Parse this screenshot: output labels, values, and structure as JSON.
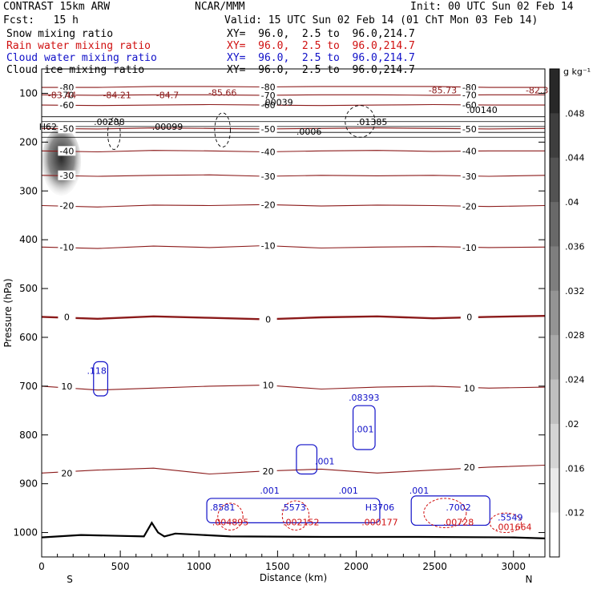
{
  "header": {
    "model": "CONTRAST 15km ARW",
    "org": "NCAR/MMM",
    "init": "Init: 00 UTC Sun 02 Feb 14",
    "fcst": "Fcst:   15 h",
    "valid": "Valid: 15 UTC Sun 02 Feb 14 (01 ChT Mon 03 Feb 14)"
  },
  "legend_rows": [
    {
      "name": "Snow mixing ratio",
      "xy": "XY=  96.0,  2.5 to  96.0,214.7",
      "color": "#000000"
    },
    {
      "name": "Rain water mixing ratio",
      "xy": "XY=  96.0,  2.5 to  96.0,214.7",
      "color": "#d01010"
    },
    {
      "name": "Cloud water mixing ratio",
      "xy": "XY=  96.0,  2.5 to  96.0,214.7",
      "color": "#1010c8"
    },
    {
      "name": "Cloud ice mixing ratio",
      "xy": "XY=  96.0,  2.5 to  96.0,214.7",
      "color": "#000000"
    }
  ],
  "colorbar": {
    "unit": "g kg⁻¹",
    "ticks": [
      ".048",
      ".044",
      ".04",
      ".036",
      ".032",
      ".028",
      ".024",
      ".02",
      ".016",
      ".012"
    ],
    "tick_values": [
      0.048,
      0.044,
      0.04,
      0.036,
      0.032,
      0.028,
      0.024,
      0.02,
      0.016,
      0.012
    ],
    "range": [
      0.008,
      0.052
    ]
  },
  "chart_data": {
    "type": "contour",
    "xlabel": "Distance (km)",
    "ylabel": "Pressure (hPa)",
    "xlim": [
      0,
      3200
    ],
    "ylim": [
      1050,
      50
    ],
    "x_ticks": [
      "0",
      "500",
      "1000",
      "1500",
      "2000",
      "2500",
      "3000"
    ],
    "x_tick_values": [
      0,
      500,
      1000,
      1500,
      2000,
      2500,
      3000
    ],
    "y_ticks": [
      "100",
      "200",
      "300",
      "400",
      "500",
      "600",
      "700",
      "800",
      "900",
      "1000"
    ],
    "y_tick_values": [
      100,
      200,
      300,
      400,
      500,
      600,
      700,
      800,
      900,
      1000
    ],
    "endpoints": {
      "left": "S",
      "right": "N"
    },
    "temperature_color": "#8b1a1a",
    "isotherms": [
      {
        "label": "-80",
        "p": [
          88,
          88,
          86,
          86,
          87,
          86,
          86,
          86,
          88,
          88
        ]
      },
      {
        "label": "-70",
        "p": [
          103,
          104,
          103,
          103,
          104,
          103,
          103,
          104,
          103,
          103
        ]
      },
      {
        "label": "-60",
        "p": [
          124,
          125,
          124,
          123,
          124,
          125,
          124,
          123,
          124,
          124
        ]
      },
      {
        "label": "-50",
        "p": [
          172,
          173,
          171,
          172,
          173,
          172,
          171,
          172,
          173,
          172
        ]
      },
      {
        "label": "-40",
        "p": [
          218,
          220,
          217,
          218,
          220,
          218,
          217,
          219,
          218,
          218
        ]
      },
      {
        "label": "-30",
        "p": [
          268,
          270,
          268,
          267,
          270,
          268,
          269,
          268,
          270,
          268
        ]
      },
      {
        "label": "-20",
        "p": [
          330,
          333,
          329,
          330,
          328,
          331,
          329,
          330,
          332,
          330
        ]
      },
      {
        "label": "-10",
        "p": [
          415,
          418,
          413,
          416,
          412,
          417,
          415,
          414,
          416,
          415
        ]
      },
      {
        "label": "0",
        "p": [
          558,
          562,
          557,
          560,
          563,
          559,
          557,
          561,
          558,
          556
        ]
      },
      {
        "label": "10",
        "p": [
          700,
          708,
          704,
          700,
          698,
          706,
          702,
          700,
          704,
          702
        ]
      },
      {
        "label": "20",
        "p": [
          878,
          872,
          868,
          880,
          874,
          870,
          878,
          872,
          866,
          862
        ]
      }
    ],
    "shaded_region": {
      "field": "snow",
      "x_km": [
        0,
        250
      ],
      "p": [
        180,
        300
      ],
      "max": 0.048
    },
    "extrema": [
      {
        "type": "L",
        "label": "-83.44",
        "x_km": 130,
        "p": 110
      },
      {
        "type": "L",
        "label": "-84.21",
        "x_km": 480,
        "p": 110
      },
      {
        "type": "L",
        "label": "-84.7",
        "x_km": 800,
        "p": 110
      },
      {
        "type": "L",
        "label": "-85.66",
        "x_km": 1150,
        "p": 105
      },
      {
        "type": "L",
        "label": "-85.73",
        "x_km": 2550,
        "p": 100
      },
      {
        "type": "L",
        "label": "-82.3",
        "x_km": 3150,
        "p": 100
      },
      {
        "type": "H",
        "label": ".00039",
        "x_km": 1500,
        "p": 125
      },
      {
        "type": "H",
        "label": ".00288",
        "x_km": 430,
        "p": 165
      },
      {
        "type": "H",
        "label": ".00099",
        "x_km": 800,
        "p": 175
      },
      {
        "type": "H",
        "label": ".01385",
        "x_km": 2100,
        "p": 165
      },
      {
        "type": "H",
        "label": ".00140",
        "x_km": 2800,
        "p": 140
      },
      {
        "type": "H",
        "label": ".0006",
        "x_km": 1700,
        "p": 185
      },
      {
        "type": "H",
        "label": "H62",
        "x_km": 40,
        "p": 175
      },
      {
        "type": "H",
        "label": ".118",
        "x_km": 350,
        "p": 675
      },
      {
        "type": "H",
        "label": ".08393",
        "x_km": 2050,
        "p": 730
      },
      {
        "type": "H",
        "label": ".001",
        "x_km": 2050,
        "p": 795
      },
      {
        "type": "H",
        "label": ".001",
        "x_km": 1800,
        "p": 860
      },
      {
        "type": "H",
        "label": ".8581",
        "x_km": 1150,
        "p": 955
      },
      {
        "type": "H",
        "label": ".004895",
        "x_km": 1200,
        "p": 985
      },
      {
        "type": "H",
        "label": ".5573",
        "x_km": 1600,
        "p": 955
      },
      {
        "type": "H",
        "label": ".002152",
        "x_km": 1650,
        "p": 985
      },
      {
        "type": "H",
        "label": "H3706",
        "x_km": 2150,
        "p": 955
      },
      {
        "type": "H",
        "label": ".000177",
        "x_km": 2150,
        "p": 985
      },
      {
        "type": "H",
        "label": ".7002",
        "x_km": 2650,
        "p": 955
      },
      {
        "type": "H",
        "label": ".00728",
        "x_km": 2650,
        "p": 985
      },
      {
        "type": "H",
        "label": ".5549",
        "x_km": 2980,
        "p": 975
      },
      {
        "type": "H",
        "label": ".001664",
        "x_km": 3000,
        "p": 995
      },
      {
        "type": "H",
        "label": ".001",
        "x_km": 1450,
        "p": 920
      },
      {
        "type": "H",
        "label": ".001",
        "x_km": 1950,
        "p": 920
      },
      {
        "type": "H",
        "label": ".001",
        "x_km": 2400,
        "p": 920
      }
    ],
    "terrain": {
      "x_km": [
        0,
        250,
        650,
        700,
        740,
        780,
        850,
        1200,
        1800,
        2400,
        3000,
        3200
      ],
      "p": [
        1010,
        1005,
        1008,
        980,
        1000,
        1008,
        1002,
        1008,
        1009,
        1009,
        1010,
        1012
      ]
    }
  }
}
